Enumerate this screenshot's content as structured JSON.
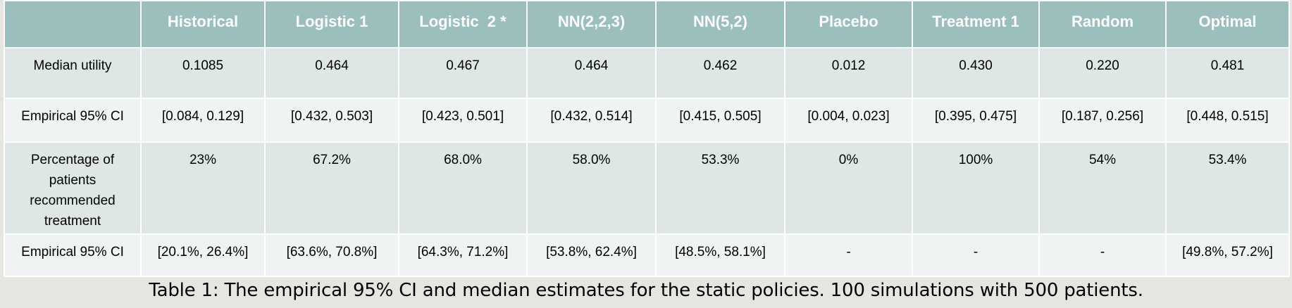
{
  "table": {
    "headers": [
      "",
      "Historical",
      "Logistic 1",
      "Logistic  2 *",
      "NN(2,2,3)",
      "NN(5,2)",
      "Placebo",
      "Treatment 1",
      "Random",
      "Optimal"
    ],
    "rows": [
      {
        "label": "Median utility",
        "cells": [
          "0.1085",
          "0.464",
          "0.467",
          "0.464",
          "0.462",
          "0.012",
          "0.430",
          "0.220",
          "0.481"
        ]
      },
      {
        "label": "Empirical 95% CI",
        "cells": [
          "[0.084, 0.129]",
          "[0.432, 0.503]",
          "[0.423, 0.501]",
          "[0.432, 0.514]",
          "[0.415, 0.505]",
          "[0.004, 0.023]",
          "[0.395, 0.475]",
          "[0.187, 0.256]",
          "[0.448, 0.515]"
        ]
      },
      {
        "label": "Percentage of patients recommended treatment",
        "cells": [
          "23%",
          "67.2%",
          "68.0%",
          "58.0%",
          "53.3%",
          "0%",
          "100%",
          "54%",
          "53.4%"
        ]
      },
      {
        "label": "Empirical 95% CI",
        "cells": [
          "[20.1%, 26.4%]",
          "[63.6%, 70.8%]",
          "[64.3%, 71.2%]",
          "[53.8%, 62.4%]",
          "[48.5%, 58.1%]",
          "-",
          "-",
          "-",
          "[49.8%, 57.2%]"
        ]
      }
    ]
  },
  "caption": "Table 1: The empirical 95% CI and median estimates for the static policies. 100 simulations with 500 patients."
}
